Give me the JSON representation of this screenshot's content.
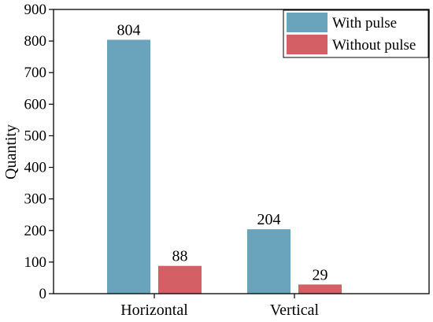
{
  "chart_data": {
    "type": "bar",
    "categories": [
      "Horizontal",
      "Vertical"
    ],
    "series": [
      {
        "name": "With pulse",
        "values": [
          804,
          204
        ],
        "color": "#6aa4bc"
      },
      {
        "name": "Without pulse",
        "values": [
          88,
          29
        ],
        "color": "#d45f65"
      }
    ],
    "xlabel": "",
    "ylabel": "Quantity",
    "ylim": [
      0,
      900
    ],
    "yticks": [
      0,
      100,
      200,
      300,
      400,
      500,
      600,
      700,
      800,
      900
    ],
    "grid": false,
    "legend": "top-right",
    "data_labels": true
  }
}
